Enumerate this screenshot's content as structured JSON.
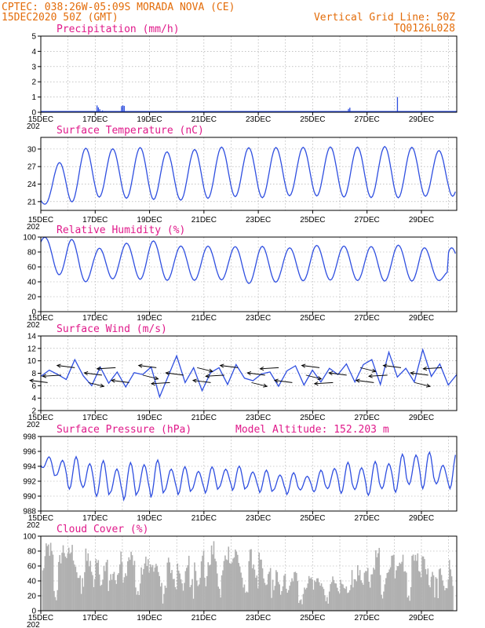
{
  "header": {
    "line1_left": "CPTEC:   038:26W-05:09S   MORADA NOVA (CE)",
    "line2_left": "15DEC2020 50Z (GMT)",
    "line1_right": "Vertical Grid Line: 50Z",
    "line2_right": "TQ0126L028"
  },
  "colors": {
    "header": "#e36c09",
    "panel_title": "#e0198a",
    "series": "#2f4fe0",
    "cloud": "#b0b0b0"
  },
  "x_axis": {
    "ticks": [
      "15DEC",
      "17DEC",
      "19DEC",
      "21DEC",
      "23DEC",
      "25DEC",
      "27DEC",
      "29DEC"
    ],
    "range_days": [
      0,
      15.3
    ],
    "year_fragment": "202"
  },
  "chart_data": [
    {
      "type": "bar",
      "title": "Precipitation (mm/h)",
      "ylim": [
        0,
        5
      ],
      "yticks": [
        "0",
        "1",
        "2",
        "3",
        "4",
        "5"
      ],
      "spikes": [
        {
          "day": 2.05,
          "value": 0.45
        },
        {
          "day": 2.1,
          "value": 0.32
        },
        {
          "day": 2.15,
          "value": 0.2
        },
        {
          "day": 2.25,
          "value": 0.12
        },
        {
          "day": 2.35,
          "value": 0.08
        },
        {
          "day": 2.6,
          "value": 0.06
        },
        {
          "day": 2.95,
          "value": 0.4
        },
        {
          "day": 3.0,
          "value": 0.45
        },
        {
          "day": 3.05,
          "value": 0.42
        },
        {
          "day": 3.5,
          "value": 0.05
        },
        {
          "day": 4.2,
          "value": 0.05
        },
        {
          "day": 4.8,
          "value": 0.04
        },
        {
          "day": 7.3,
          "value": 0.03
        },
        {
          "day": 11.0,
          "value": 0.05
        },
        {
          "day": 11.3,
          "value": 0.22
        },
        {
          "day": 11.35,
          "value": 0.3
        },
        {
          "day": 12.3,
          "value": 0.03
        },
        {
          "day": 13.1,
          "value": 1.0
        }
      ]
    },
    {
      "type": "line",
      "title": "Surface Temperature (nC)",
      "ylim": [
        19.5,
        32
      ],
      "yticks": [
        "21",
        "24",
        "27",
        "30"
      ],
      "base_min": [
        20.5,
        20.8,
        21.8,
        21.6,
        21.4,
        21.2,
        21.5,
        21.9,
        21.6,
        22.0,
        22.0,
        21.8,
        21.7,
        21.6,
        21.9,
        22.0
      ],
      "base_max": [
        24.0,
        29.5,
        30.5,
        29.8,
        30.5,
        29.0,
        30.4,
        30.3,
        30.2,
        30.3,
        30.3,
        30.4,
        30.3,
        30.5,
        30.2,
        29.5
      ]
    },
    {
      "type": "line",
      "title": "Relative Humidity (%)",
      "ylim": [
        0,
        100
      ],
      "yticks": [
        "0",
        "20",
        "40",
        "60",
        "80",
        "100"
      ],
      "base_min": [
        68,
        40,
        40,
        46,
        42,
        42,
        42,
        43,
        35,
        42,
        41,
        43,
        41,
        41,
        41,
        42
      ],
      "base_max": [
        100,
        99,
        84,
        91,
        96,
        88,
        88,
        87,
        88,
        85,
        89,
        88,
        87,
        89,
        90,
        57
      ]
    },
    {
      "type": "line",
      "title": "Surface Wind (m/s)",
      "ylim": [
        2,
        14
      ],
      "yticks": [
        "2",
        "4",
        "6",
        "8",
        "10",
        "12",
        "14"
      ],
      "speeds": [
        7.5,
        8.5,
        7.8,
        7.0,
        10.2,
        7.6,
        6.0,
        9.0,
        6.4,
        8.2,
        5.8,
        8.1,
        7.8,
        9.0,
        4.2,
        7.5,
        10.8,
        6.5,
        8.9,
        5.2,
        8.1,
        8.9,
        6.2,
        9.4,
        7.2,
        6.8,
        7.9,
        8.2,
        5.9,
        8.4,
        9.2,
        6.1,
        8.5,
        6.6,
        8.8,
        7.8,
        9.5,
        6.6,
        9.4,
        10.2,
        6.2,
        11.4,
        7.4,
        8.8,
        6.6,
        11.8,
        7.5,
        9.5,
        6.1,
        7.8
      ],
      "direction_from_deg": 100
    },
    {
      "type": "line",
      "title": "Surface Pressure (hPa)",
      "annotation": "Model Altitude: 152.203 m",
      "ylim": [
        988,
        998
      ],
      "yticks": [
        "988",
        "990",
        "992",
        "994",
        "996",
        "998"
      ],
      "base_min": [
        994.0,
        991.0,
        990.0,
        989.5,
        989.8,
        990.2,
        990.4,
        990.8,
        990.5,
        990.2,
        990.6,
        990.4,
        990.1,
        990.5,
        991.0,
        991.0
      ],
      "base_max": [
        995.2,
        995.4,
        995.0,
        994.2,
        995.2,
        994.0,
        993.8,
        994.2,
        993.6,
        993.2,
        993.0,
        994.6,
        994.4,
        995.2,
        996.6,
        994.2
      ]
    },
    {
      "type": "area",
      "title": "Cloud Cover (%)",
      "ylim": [
        0,
        100
      ],
      "yticks": [
        "0",
        "20",
        "40",
        "60",
        "80",
        "100"
      ],
      "daily_max": [
        100,
        95,
        90,
        88,
        75,
        72,
        95,
        92,
        80,
        58,
        50,
        45,
        88,
        85,
        90,
        60
      ]
    }
  ]
}
